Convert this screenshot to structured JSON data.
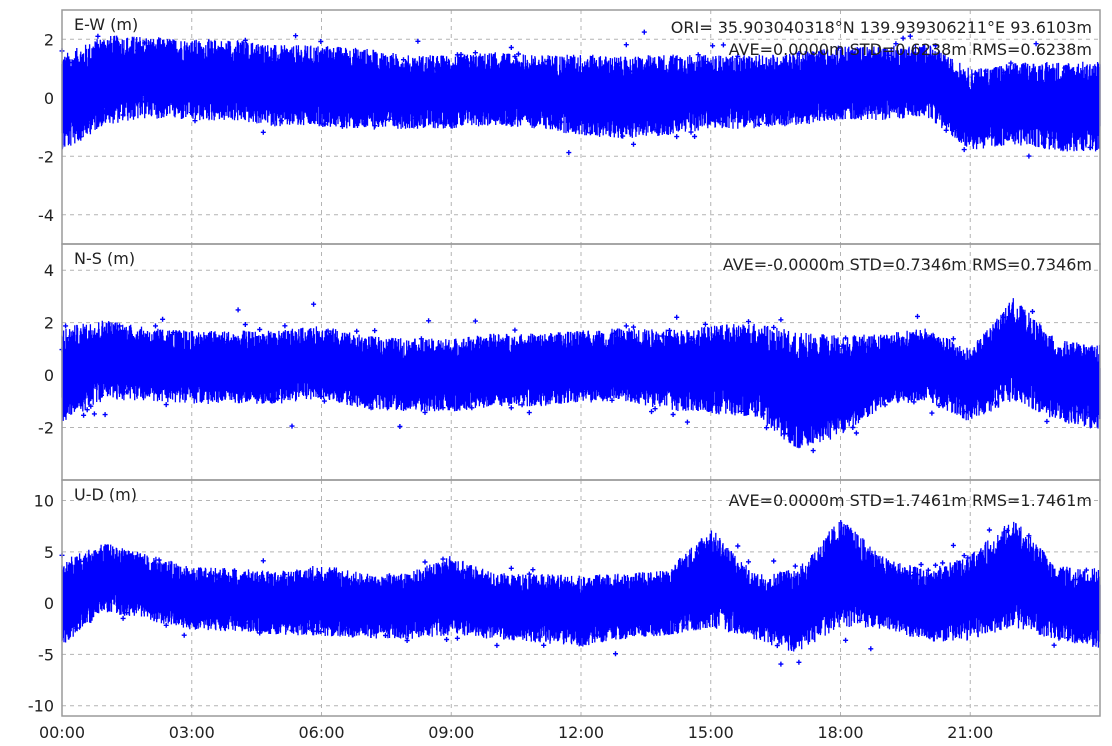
{
  "colors": {
    "series": "#0000ff",
    "grid": "#b4b4b4",
    "frame": "#9a9a9a",
    "text": "#222222"
  },
  "header": {
    "origin": "ORI= 35.903040318°N  139.939306211°E 93.6103m"
  },
  "chart_data": [
    {
      "type": "scatter",
      "title": "E-W (m)",
      "stats": "AVE=0.0000m STD=0.6238m RMS=0.6238m",
      "xlim": [
        "00:00",
        "24:00"
      ],
      "ylim": [
        -5,
        3
      ],
      "yticks": [
        "2",
        "0",
        "-2",
        "-4"
      ],
      "ytick_values": [
        2,
        0,
        -2,
        -4
      ],
      "grid": true,
      "series": [
        {
          "x": [
            "00:00",
            "01:00",
            "02:00",
            "03:00",
            "04:00",
            "05:00",
            "06:00",
            "07:00",
            "08:00",
            "09:00",
            "10:00",
            "11:00",
            "12:00",
            "13:00",
            "14:00",
            "15:00",
            "16:00",
            "17:00",
            "18:00",
            "19:00",
            "20:00",
            "21:00",
            "22:00",
            "23:00",
            "24:00"
          ],
          "y": [
            -0.2,
            0.6,
            0.7,
            0.6,
            0.6,
            0.4,
            0.4,
            0.3,
            0.2,
            0.2,
            0.3,
            0.2,
            0.1,
            0.0,
            0.1,
            0.2,
            0.2,
            0.3,
            0.5,
            0.5,
            0.6,
            -0.4,
            -0.2,
            -0.3,
            -0.3
          ],
          "spread": [
            1.2,
            1.1,
            1.0,
            1.0,
            1.0,
            1.0,
            1.0,
            1.0,
            0.9,
            0.9,
            0.9,
            0.9,
            1.0,
            1.0,
            1.0,
            0.9,
            0.9,
            0.9,
            0.9,
            0.9,
            0.9,
            1.0,
            1.0,
            1.1,
            1.1
          ]
        }
      ],
      "xticks": [
        "00:00",
        "03:00",
        "06:00",
        "09:00",
        "12:00",
        "15:00",
        "18:00",
        "21:00"
      ]
    },
    {
      "type": "scatter",
      "title": "N-S (m)",
      "stats": "AVE=-0.0000m STD=0.7346m RMS=0.7346m",
      "xlim": [
        "00:00",
        "24:00"
      ],
      "ylim": [
        -4,
        5
      ],
      "yticks": [
        "4",
        "2",
        "0",
        "-2"
      ],
      "ytick_values": [
        4,
        2,
        0,
        -2
      ],
      "grid": true,
      "series": [
        {
          "x": [
            "00:00",
            "01:00",
            "02:00",
            "03:00",
            "04:00",
            "05:00",
            "06:00",
            "07:00",
            "08:00",
            "09:00",
            "10:00",
            "11:00",
            "12:00",
            "13:00",
            "14:00",
            "15:00",
            "16:00",
            "17:00",
            "18:00",
            "19:00",
            "20:00",
            "21:00",
            "22:00",
            "23:00",
            "24:00"
          ],
          "y": [
            0.0,
            0.6,
            0.4,
            0.3,
            0.3,
            0.3,
            0.5,
            0.1,
            0.0,
            0.0,
            0.2,
            0.2,
            0.3,
            0.4,
            0.2,
            0.2,
            0.2,
            -0.6,
            -0.4,
            0.2,
            0.4,
            -0.4,
            1.0,
            -0.2,
            -0.5
          ],
          "spread": [
            1.3,
            1.1,
            1.0,
            1.0,
            1.0,
            1.0,
            1.0,
            1.0,
            1.0,
            1.0,
            1.0,
            1.0,
            1.0,
            1.0,
            1.1,
            1.2,
            1.3,
            1.6,
            1.4,
            1.0,
            1.0,
            1.0,
            1.4,
            1.1,
            1.2
          ]
        }
      ],
      "xticks": [
        "00:00",
        "03:00",
        "06:00",
        "09:00",
        "12:00",
        "15:00",
        "18:00",
        "21:00"
      ]
    },
    {
      "type": "scatter",
      "title": "U-D (m)",
      "stats": "AVE=0.0000m STD=1.7461m RMS=1.7461m",
      "xlim": [
        "00:00",
        "24:00"
      ],
      "ylim": [
        -11,
        12
      ],
      "yticks": [
        "10",
        "5",
        "0",
        "-5",
        "-10"
      ],
      "ytick_values": [
        10,
        5,
        0,
        -5,
        -10
      ],
      "grid": true,
      "series": [
        {
          "x": [
            "00:00",
            "01:00",
            "02:00",
            "03:00",
            "04:00",
            "05:00",
            "06:00",
            "07:00",
            "08:00",
            "09:00",
            "10:00",
            "11:00",
            "12:00",
            "13:00",
            "14:00",
            "15:00",
            "16:00",
            "17:00",
            "18:00",
            "19:00",
            "20:00",
            "21:00",
            "22:00",
            "23:00",
            "24:00"
          ],
          "y": [
            0.0,
            2.5,
            1.5,
            0.5,
            0.3,
            0.0,
            0.3,
            -0.3,
            -0.3,
            0.8,
            -0.3,
            -0.5,
            -0.8,
            -0.3,
            0.0,
            2.5,
            -0.3,
            -0.8,
            3.0,
            1.0,
            -0.3,
            0.5,
            3.0,
            0.0,
            -0.5
          ],
          "spread": [
            3.0,
            2.4,
            2.3,
            2.2,
            2.2,
            2.2,
            2.5,
            2.3,
            2.3,
            2.8,
            2.3,
            2.4,
            2.5,
            2.3,
            2.3,
            3.5,
            2.3,
            3.0,
            3.8,
            2.5,
            2.5,
            3.0,
            3.8,
            2.6,
            2.8
          ]
        }
      ],
      "xticks": [
        "00:00",
        "03:00",
        "06:00",
        "09:00",
        "12:00",
        "15:00",
        "18:00",
        "21:00"
      ]
    }
  ]
}
